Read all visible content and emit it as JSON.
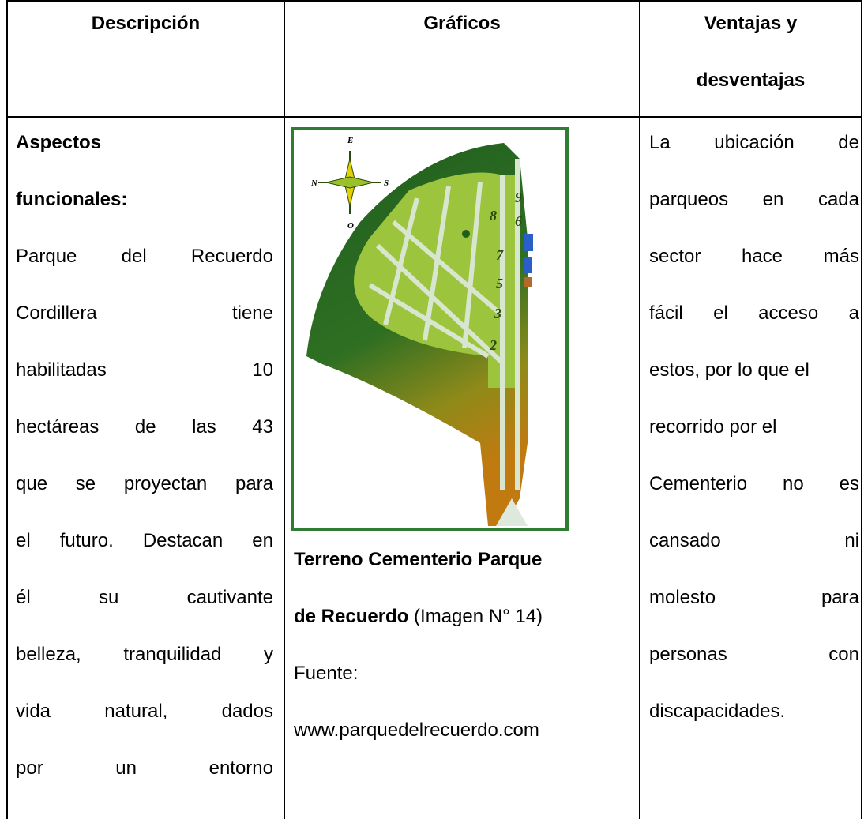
{
  "table": {
    "headers": [
      "Descripción",
      "Gráficos",
      [
        "Ventajas y",
        "desventajas"
      ]
    ],
    "row": {
      "description": {
        "heading": [
          "Aspectos",
          "funcionales:"
        ],
        "body": [
          "Parque del Recuerdo",
          "Cordillera tiene",
          "habilitadas 10",
          "hectáreas de las 43",
          "que se proyectan para",
          "el futuro. Destacan en",
          "él su cautivante",
          "belleza, tranquilidad y",
          "vida natural, dados",
          "por un entorno"
        ]
      },
      "graphic": {
        "map": {
          "compass": [
            "E",
            "N",
            "S",
            "O"
          ],
          "sectors": [
            "9",
            "8",
            "6",
            "7",
            "5",
            "3",
            "2"
          ]
        },
        "caption_bold": [
          "Terreno Cementerio Parque",
          "de Recuerdo"
        ],
        "caption_rest": "(Imagen N° 14)",
        "source_label": "Fuente:",
        "source_url": "www.parquedelrecuerdo.com"
      },
      "advantages": [
        [
          "La ubicación de",
          "parqueos en cada",
          "sector hace más",
          "fácil el acceso a",
          "estos, por lo que el"
        ],
        [
          "recorrido por el"
        ],
        [
          "Cementerio no es",
          "cansado ni",
          "molesto para",
          "personas con",
          "discapacidades."
        ]
      ]
    }
  }
}
